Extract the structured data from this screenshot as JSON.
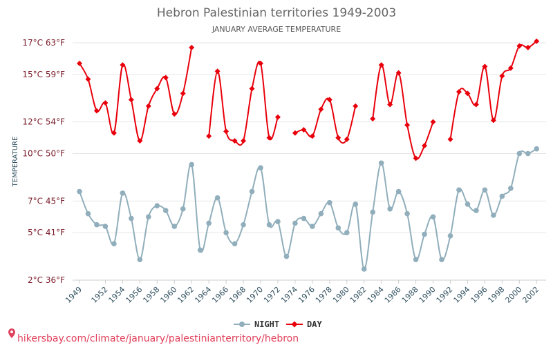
{
  "chart_data": {
    "type": "line",
    "title": "Hebron Palestinian territories 1949-2003",
    "subtitle": "JANUARY AVERAGE TEMPERATURE",
    "ylabel": "TEMPERATURE",
    "ylim": [
      2,
      17
    ],
    "y_ticks": [
      {
        "value": 2,
        "label": "2°C 36°F"
      },
      {
        "value": 5,
        "label": "5°C 41°F"
      },
      {
        "value": 7,
        "label": "7°C 45°F"
      },
      {
        "value": 10,
        "label": "10°C 50°F"
      },
      {
        "value": 12,
        "label": "12°C 54°F"
      },
      {
        "value": 15,
        "label": "15°C 59°F"
      },
      {
        "value": 17,
        "label": "17°C 63°F"
      }
    ],
    "x_ticks": [
      "1949",
      "1952",
      "1954",
      "1956",
      "1958",
      "1960",
      "1962",
      "1964",
      "1966",
      "1968",
      "1970",
      "1972",
      "1974",
      "1976",
      "1978",
      "1980",
      "1982",
      "1984",
      "1986",
      "1988",
      "1990",
      "1992",
      "1994",
      "1996",
      "1998",
      "2000",
      "2002"
    ],
    "grid": true,
    "legend_position": "bottom-center",
    "series": [
      {
        "name": "NIGHT",
        "color": "#90aebb",
        "marker": "circle",
        "points": [
          [
            1949,
            7.6
          ],
          [
            1950,
            6.2
          ],
          [
            1951,
            5.5
          ],
          [
            1952,
            5.4
          ],
          [
            1953,
            4.3
          ],
          [
            1954,
            7.5
          ],
          [
            1955,
            5.9
          ],
          [
            1956,
            3.3
          ],
          [
            1957,
            6.0
          ],
          [
            1958,
            6.7
          ],
          [
            1959,
            6.4
          ],
          [
            1960,
            5.4
          ],
          [
            1961,
            6.5
          ],
          [
            1962,
            9.3
          ],
          [
            1963,
            3.9
          ],
          [
            1964,
            5.6
          ],
          [
            1965,
            7.2
          ],
          [
            1966,
            5.0
          ],
          [
            1967,
            4.3
          ],
          [
            1968,
            5.5
          ],
          [
            1969,
            7.6
          ],
          [
            1970,
            9.1
          ],
          [
            1971,
            5.5
          ],
          [
            1972,
            5.7
          ],
          [
            1973,
            3.5
          ],
          [
            1974,
            5.6
          ],
          [
            1975,
            5.9
          ],
          [
            1976,
            5.4
          ],
          [
            1977,
            6.2
          ],
          [
            1978,
            6.9
          ],
          [
            1979,
            5.3
          ],
          [
            1980,
            5.0
          ],
          [
            1981,
            6.8
          ],
          [
            1982,
            2.7
          ],
          [
            1983,
            6.3
          ],
          [
            1984,
            9.4
          ],
          [
            1985,
            6.5
          ],
          [
            1986,
            7.6
          ],
          [
            1987,
            6.2
          ],
          [
            1988,
            3.3
          ],
          [
            1989,
            4.9
          ],
          [
            1990,
            6.0
          ],
          [
            1991,
            3.3
          ],
          [
            1992,
            4.8
          ],
          [
            1993,
            7.7
          ],
          [
            1994,
            6.8
          ],
          [
            1995,
            6.4
          ],
          [
            1996,
            7.7
          ],
          [
            1997,
            6.1
          ],
          [
            1998,
            7.3
          ],
          [
            1999,
            7.8
          ],
          [
            2000,
            10.0
          ],
          [
            2001,
            10.0
          ],
          [
            2002,
            10.3
          ]
        ]
      },
      {
        "name": "DAY",
        "color": "#e8000b",
        "marker": "diamond",
        "points": [
          [
            1949,
            15.7
          ],
          [
            1950,
            14.7
          ],
          [
            1951,
            12.7
          ],
          [
            1952,
            13.2
          ],
          [
            1953,
            11.3
          ],
          [
            1954,
            15.6
          ],
          [
            1955,
            13.4
          ],
          [
            1956,
            10.8
          ],
          [
            1957,
            13.0
          ],
          [
            1958,
            14.1
          ],
          [
            1959,
            14.8
          ],
          [
            1960,
            12.5
          ],
          [
            1961,
            13.8
          ],
          [
            1962,
            16.7
          ],
          [
            1963,
            null
          ],
          [
            1964,
            11.1
          ],
          [
            1965,
            15.2
          ],
          [
            1966,
            11.4
          ],
          [
            1967,
            10.8
          ],
          [
            1968,
            10.8
          ],
          [
            1969,
            14.1
          ],
          [
            1970,
            15.7
          ],
          [
            1971,
            11.0
          ],
          [
            1972,
            12.3
          ],
          [
            1973,
            null
          ],
          [
            1974,
            11.3
          ],
          [
            1975,
            11.5
          ],
          [
            1976,
            11.1
          ],
          [
            1977,
            12.8
          ],
          [
            1978,
            13.4
          ],
          [
            1979,
            11.0
          ],
          [
            1980,
            10.9
          ],
          [
            1981,
            13.0
          ],
          [
            1982,
            null
          ],
          [
            1983,
            12.2
          ],
          [
            1984,
            15.6
          ],
          [
            1985,
            13.1
          ],
          [
            1986,
            15.1
          ],
          [
            1987,
            11.8
          ],
          [
            1988,
            9.7
          ],
          [
            1989,
            10.5
          ],
          [
            1990,
            12.0
          ],
          [
            1991,
            null
          ],
          [
            1992,
            10.9
          ],
          [
            1993,
            13.9
          ],
          [
            1994,
            13.8
          ],
          [
            1995,
            13.1
          ],
          [
            1996,
            15.5
          ],
          [
            1997,
            12.1
          ],
          [
            1998,
            14.9
          ],
          [
            1999,
            15.4
          ],
          [
            2000,
            16.8
          ],
          [
            2001,
            16.7
          ],
          [
            2002,
            17.1
          ]
        ]
      }
    ]
  },
  "footer": {
    "text": "hikersbay.com/climate/january/palestinianterritory/hebron"
  }
}
